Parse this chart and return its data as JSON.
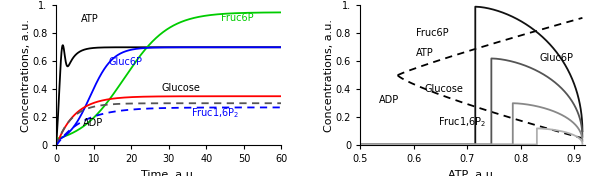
{
  "panel_a": {
    "xlabel": "Time, a.u.",
    "ylabel": "Concentrations, a.u.",
    "xlim": [
      0,
      60
    ],
    "ylim": [
      0,
      1.0
    ],
    "yticks": [
      0,
      0.2,
      0.4,
      0.6,
      0.8,
      1.0
    ],
    "xticks": [
      0,
      10,
      20,
      30,
      40,
      50,
      60
    ]
  },
  "panel_b": {
    "xlabel": "ATP, a.u.",
    "ylabel": "Concentrations, a.u.",
    "xlim": [
      0.5,
      0.92
    ],
    "ylim": [
      0,
      1.0
    ],
    "yticks": [
      0,
      0.2,
      0.4,
      0.6,
      0.8,
      1.0
    ],
    "xticks": [
      0.5,
      0.6,
      0.7,
      0.8,
      0.9
    ]
  },
  "colors": {
    "glucose": "#ff0000",
    "fruc6p": "#00cc00",
    "gluc6p": "#0000ff",
    "atp": "#000000",
    "adp": "#555555",
    "fruc162p_dash": "#0000ff"
  }
}
